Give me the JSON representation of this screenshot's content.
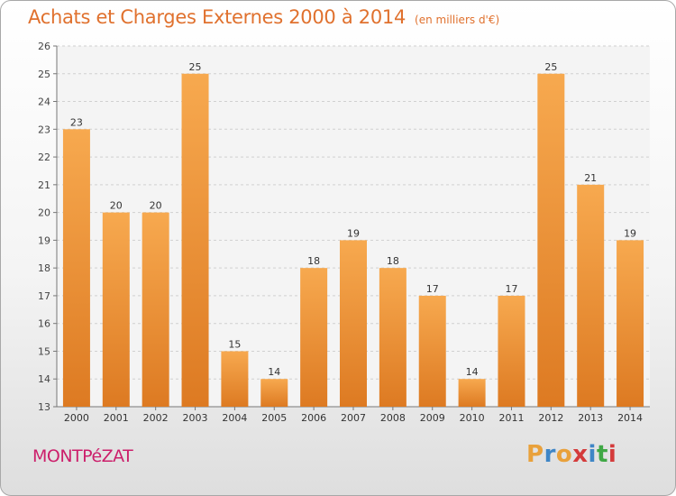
{
  "header": {
    "title": "Achats et Charges Externes 2000 à 2014",
    "subtitle": "(en milliers d'€)"
  },
  "footer": {
    "place": "MONTPéZAT",
    "logo": "Proxiti"
  },
  "colors": {
    "title": "#e0712e",
    "place": "#cc1f6b",
    "bar_light": "#f7a94f",
    "bar_dark": "#dd7a22",
    "logo_letters": [
      "#e9a13b",
      "#3f86c6",
      "#e9a13b",
      "#d43b3b",
      "#3f86c6",
      "#3fa845",
      "#d43b3b"
    ]
  },
  "chart_data": {
    "type": "bar",
    "categories": [
      "2000",
      "2001",
      "2002",
      "2003",
      "2004",
      "2005",
      "2006",
      "2007",
      "2008",
      "2009",
      "2010",
      "2011",
      "2012",
      "2013",
      "2014"
    ],
    "values": [
      23,
      20,
      20,
      25,
      15,
      14,
      18,
      19,
      18,
      17,
      14,
      17,
      25,
      21,
      19
    ],
    "ylim": [
      13,
      26
    ],
    "yticks": [
      13,
      14,
      15,
      16,
      17,
      18,
      19,
      20,
      21,
      22,
      23,
      24,
      25,
      26
    ],
    "grid": "horizontal dashed",
    "data_labels": true
  }
}
